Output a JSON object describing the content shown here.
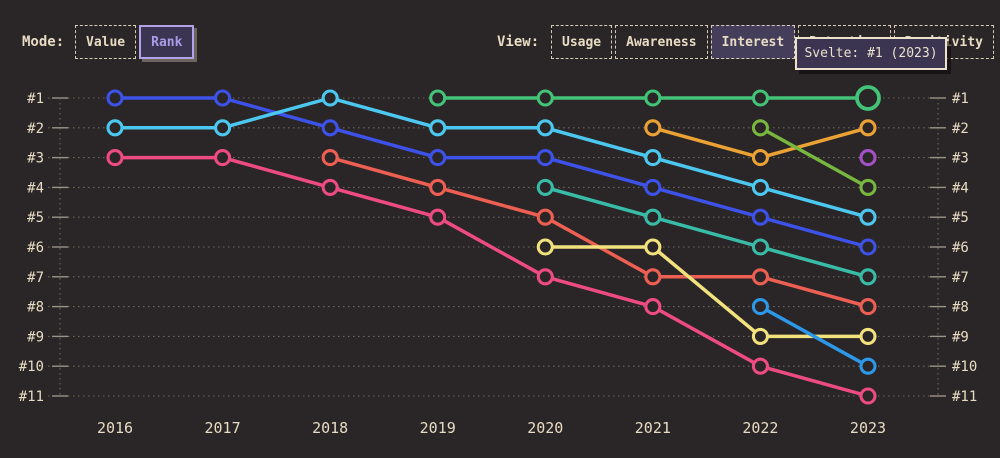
{
  "controls": {
    "mode": {
      "label": "Mode:",
      "options": [
        {
          "label": "Value",
          "selected": false
        },
        {
          "label": "Rank",
          "selected": true
        }
      ]
    },
    "view": {
      "label": "View:",
      "options": [
        {
          "label": "Usage",
          "selected": false
        },
        {
          "label": "Awareness",
          "selected": false
        },
        {
          "label": "Interest",
          "selected": true
        },
        {
          "label": "Retention",
          "selected": false
        },
        {
          "label": "Positivity",
          "selected": false
        }
      ]
    }
  },
  "tooltip": {
    "text": "Svelte: #1 (2023)"
  },
  "colors": {
    "background": "#2a2526",
    "text": "#e7dcc3",
    "grid_dotted": "#6e6960",
    "tick": "#9a9488",
    "accent": "#ab9ce8",
    "tooltip_bg": "#3b3551",
    "tooltip_border": "#ece2cc"
  },
  "chart_data": {
    "type": "line",
    "variant": "bump-ranking",
    "title": "",
    "x": [
      2016,
      2017,
      2018,
      2019,
      2020,
      2021,
      2022,
      2023
    ],
    "rank_ticks": [
      "#1",
      "#2",
      "#3",
      "#4",
      "#5",
      "#6",
      "#7",
      "#8",
      "#9",
      "#10",
      "#11"
    ],
    "y_axis": "rank (1 best, inverted scale, mirrored left and right)",
    "grid": "dotted horizontal line per rank",
    "legend": "none (tooltip identifies hovered series)",
    "series": [
      {
        "name": "indigo",
        "color": "#3d52e8",
        "ranks": [
          1,
          1,
          2,
          3,
          3,
          4,
          5,
          6
        ]
      },
      {
        "name": "cyan",
        "color": "#4cc8f0",
        "ranks": [
          2,
          2,
          1,
          2,
          2,
          3,
          4,
          5
        ]
      },
      {
        "name": "pink",
        "color": "#ee4b82",
        "ranks": [
          3,
          3,
          4,
          5,
          7,
          8,
          10,
          11
        ]
      },
      {
        "name": "coral",
        "color": "#ec5f52",
        "ranks": [
          null,
          null,
          3,
          4,
          5,
          7,
          7,
          8
        ]
      },
      {
        "name": "Svelte",
        "color": "#42c378",
        "ranks": [
          null,
          null,
          null,
          1,
          1,
          1,
          1,
          1
        ]
      },
      {
        "name": "teal",
        "color": "#38bca8",
        "ranks": [
          null,
          null,
          null,
          null,
          4,
          5,
          6,
          7
        ]
      },
      {
        "name": "yellow",
        "color": "#f2e27e",
        "ranks": [
          null,
          null,
          null,
          null,
          6,
          6,
          9,
          9
        ]
      },
      {
        "name": "orange",
        "color": "#e9a233",
        "ranks": [
          null,
          null,
          null,
          null,
          null,
          2,
          3,
          2
        ]
      },
      {
        "name": "sky",
        "color": "#2d97e8",
        "ranks": [
          null,
          null,
          null,
          null,
          null,
          null,
          8,
          10
        ]
      },
      {
        "name": "lime",
        "color": "#77b73f",
        "ranks": [
          null,
          null,
          null,
          null,
          null,
          null,
          2,
          4
        ]
      },
      {
        "name": "purple",
        "color": "#a352c6",
        "ranks": [
          null,
          null,
          null,
          null,
          null,
          null,
          null,
          3
        ]
      }
    ],
    "highlight": {
      "series": "Svelte",
      "x": 2023,
      "rank": 1
    }
  }
}
